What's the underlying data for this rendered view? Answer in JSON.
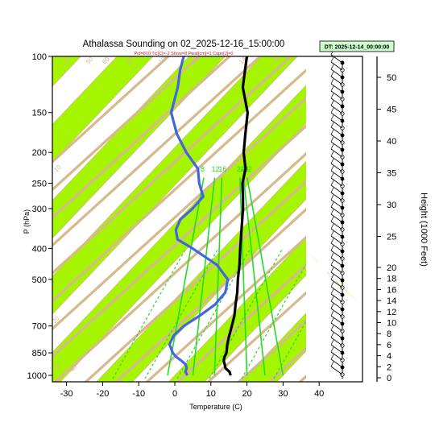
{
  "title": "Athalassa Sounding on 02_2025-12-16_15:00:00",
  "subtitle": "Pid=810 Tic[C]=-2 Show=8 Pwat[cm]=1 Cape[J]=0",
  "dt_label": "DT: 2025-12-14_00:00:00",
  "colors": {
    "band": "#a6f500",
    "adiabat": "#d6b98c",
    "mixing": "#22dd22",
    "temp": "#000000",
    "dew": "#4466dd",
    "axis": "#000000"
  },
  "chart_data": {
    "type": "skew-t",
    "title": "Athalassa Sounding on 02_2025-12-16_15:00:00",
    "xlabel": "Temperature (C)",
    "ylabel": "P (hPa)",
    "y2label": "Height (1000 Feet)",
    "x_ticks": [
      -30,
      -20,
      -10,
      0,
      10,
      20,
      30,
      40
    ],
    "p_ticks": [
      100,
      150,
      200,
      250,
      300,
      400,
      500,
      700,
      850,
      1000
    ],
    "height_ticks": [
      0,
      2,
      4,
      6,
      8,
      10,
      12,
      14,
      16,
      18,
      20,
      25,
      30,
      35,
      40,
      45,
      50
    ],
    "mixing_ratio_labels": [
      "8",
      "12",
      "16",
      "24",
      "28",
      "32"
    ],
    "adiabat_labels": [
      "40",
      "50",
      "60",
      "80",
      "100",
      "120",
      "140",
      "160",
      "0",
      "10",
      "20",
      "30",
      "20",
      "10",
      "0",
      "10",
      "20",
      "30",
      "40"
    ],
    "temperature": [
      {
        "p": 1000,
        "t": 15.5
      },
      {
        "p": 975,
        "t": 14.2
      },
      {
        "p": 950,
        "t": 12.2
      },
      {
        "p": 925,
        "t": 11.0
      },
      {
        "p": 900,
        "t": 9.7
      },
      {
        "p": 875,
        "t": 8.9
      },
      {
        "p": 850,
        "t": 8.4
      },
      {
        "p": 800,
        "t": 6.4
      },
      {
        "p": 750,
        "t": 4.6
      },
      {
        "p": 700,
        "t": 2.8
      },
      {
        "p": 650,
        "t": 0.8
      },
      {
        "p": 600,
        "t": -1.8
      },
      {
        "p": 550,
        "t": -4.5
      },
      {
        "p": 500,
        "t": -7.8
      },
      {
        "p": 450,
        "t": -11.2
      },
      {
        "p": 400,
        "t": -15.3
      },
      {
        "p": 350,
        "t": -19.8
      },
      {
        "p": 300,
        "t": -25.0
      },
      {
        "p": 275,
        "t": -28.2
      },
      {
        "p": 250,
        "t": -31.8
      },
      {
        "p": 225,
        "t": -34.8
      },
      {
        "p": 200,
        "t": -39.6
      },
      {
        "p": 175,
        "t": -44.0
      },
      {
        "p": 150,
        "t": -49.0
      },
      {
        "p": 125,
        "t": -57.0
      },
      {
        "p": 110,
        "t": -61.0
      },
      {
        "p": 100,
        "t": -64.0
      }
    ],
    "dewpoint": [
      {
        "p": 1000,
        "t": 3.5
      },
      {
        "p": 975,
        "t": 2.0
      },
      {
        "p": 950,
        "t": 1.4
      },
      {
        "p": 925,
        "t": 0.2
      },
      {
        "p": 900,
        "t": -2.0
      },
      {
        "p": 875,
        "t": -4.5
      },
      {
        "p": 850,
        "t": -6.5
      },
      {
        "p": 800,
        "t": -9.6
      },
      {
        "p": 750,
        "t": -10.8
      },
      {
        "p": 700,
        "t": -10.5
      },
      {
        "p": 650,
        "t": -8.8
      },
      {
        "p": 600,
        "t": -7.5
      },
      {
        "p": 550,
        "t": -7.8
      },
      {
        "p": 500,
        "t": -10.6
      },
      {
        "p": 450,
        "t": -17.5
      },
      {
        "p": 400,
        "t": -28.5
      },
      {
        "p": 375,
        "t": -35.0
      },
      {
        "p": 350,
        "t": -38.0
      },
      {
        "p": 325,
        "t": -39.5
      },
      {
        "p": 300,
        "t": -39.0
      },
      {
        "p": 275,
        "t": -39.2
      },
      {
        "p": 250,
        "t": -43.8
      },
      {
        "p": 225,
        "t": -48.0
      },
      {
        "p": 200,
        "t": -55.5
      },
      {
        "p": 175,
        "t": -63.0
      },
      {
        "p": 150,
        "t": -70.2
      },
      {
        "p": 125,
        "t": -75.0
      },
      {
        "p": 110,
        "t": -79.0
      },
      {
        "p": 100,
        "t": -81.5
      }
    ],
    "grid": true,
    "legend": "none"
  }
}
